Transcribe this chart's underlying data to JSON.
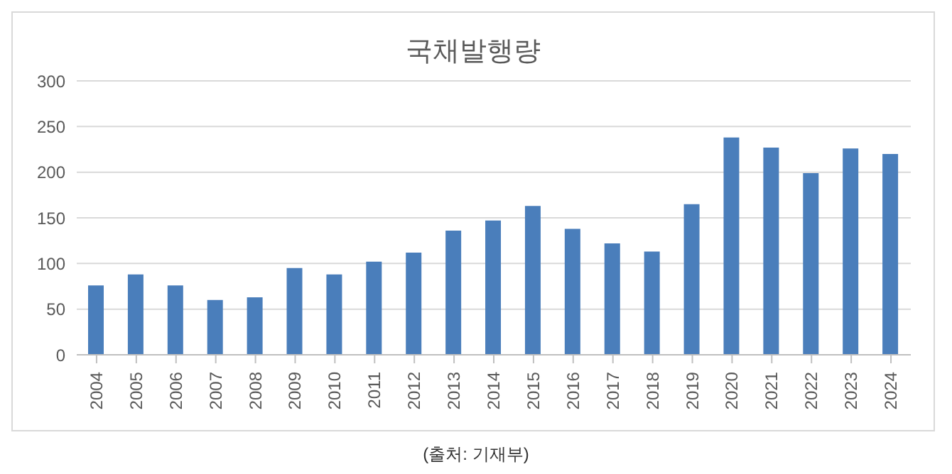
{
  "chart_data": {
    "type": "bar",
    "title": "국채발행량",
    "categories": [
      "2004",
      "2005",
      "2006",
      "2007",
      "2008",
      "2009",
      "2010",
      "2011",
      "2012",
      "2013",
      "2014",
      "2015",
      "2016",
      "2017",
      "2018",
      "2019",
      "2020",
      "2021",
      "2022",
      "2023",
      "2024"
    ],
    "values": [
      76,
      88,
      76,
      60,
      63,
      95,
      88,
      102,
      112,
      136,
      147,
      163,
      138,
      122,
      113,
      165,
      238,
      227,
      199,
      226,
      220
    ],
    "color": "#4a7ebb",
    "ylim": [
      0,
      300
    ],
    "yticks": [
      0,
      50,
      100,
      150,
      200,
      250,
      300
    ],
    "grid": "y",
    "annotations": [
      "(출처: 기재부)"
    ]
  }
}
